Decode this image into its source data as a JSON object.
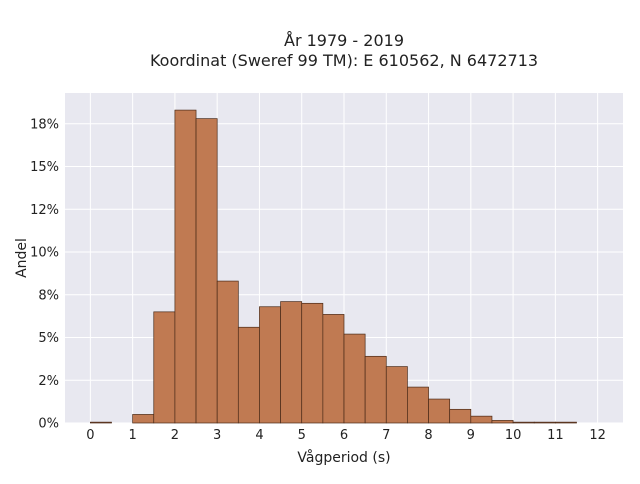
{
  "chart_data": {
    "type": "bar",
    "title_line1": "År 1979 - 2019",
    "title_line2": "Koordinat (Sweref 99 TM): E 610562, N 6472713",
    "xlabel": "Vågperiod (s)",
    "ylabel": "Andel",
    "xlim": [
      -0.6,
      12.6
    ],
    "ylim": [
      0,
      19.3
    ],
    "x_ticks": [
      0,
      1,
      2,
      3,
      4,
      5,
      6,
      7,
      8,
      9,
      10,
      11,
      12
    ],
    "x_tick_labels": [
      "0",
      "1",
      "2",
      "3",
      "4",
      "5",
      "6",
      "7",
      "8",
      "9",
      "10",
      "11",
      "12"
    ],
    "y_ticks": [
      0,
      2.5,
      5,
      7.5,
      10,
      12.5,
      15,
      17.5
    ],
    "y_tick_labels": [
      "0%",
      "2%",
      "5%",
      "8%",
      "10%",
      "12%",
      "15%",
      "18%"
    ],
    "grid": true,
    "bin_width": 0.5,
    "bins": [
      {
        "start": 0.0,
        "value": 0.05
      },
      {
        "start": 1.0,
        "value": 0.5
      },
      {
        "start": 1.5,
        "value": 6.5
      },
      {
        "start": 2.0,
        "value": 18.3
      },
      {
        "start": 2.5,
        "value": 17.8
      },
      {
        "start": 3.0,
        "value": 8.3
      },
      {
        "start": 3.5,
        "value": 5.6
      },
      {
        "start": 4.0,
        "value": 6.8
      },
      {
        "start": 4.5,
        "value": 7.1
      },
      {
        "start": 5.0,
        "value": 7.0
      },
      {
        "start": 5.5,
        "value": 6.35
      },
      {
        "start": 6.0,
        "value": 5.2
      },
      {
        "start": 6.5,
        "value": 3.9
      },
      {
        "start": 7.0,
        "value": 3.3
      },
      {
        "start": 7.5,
        "value": 2.1
      },
      {
        "start": 8.0,
        "value": 1.4
      },
      {
        "start": 8.5,
        "value": 0.8
      },
      {
        "start": 9.0,
        "value": 0.4
      },
      {
        "start": 9.5,
        "value": 0.15
      },
      {
        "start": 10.0,
        "value": 0.05
      },
      {
        "start": 10.5,
        "value": 0.05
      },
      {
        "start": 11.0,
        "value": 0.05
      }
    ],
    "colors": {
      "bar_fill": "#c07a52",
      "bar_stroke": "#4a2a18",
      "plot_bg": "#e8e8f0",
      "grid": "#ffffff"
    }
  }
}
